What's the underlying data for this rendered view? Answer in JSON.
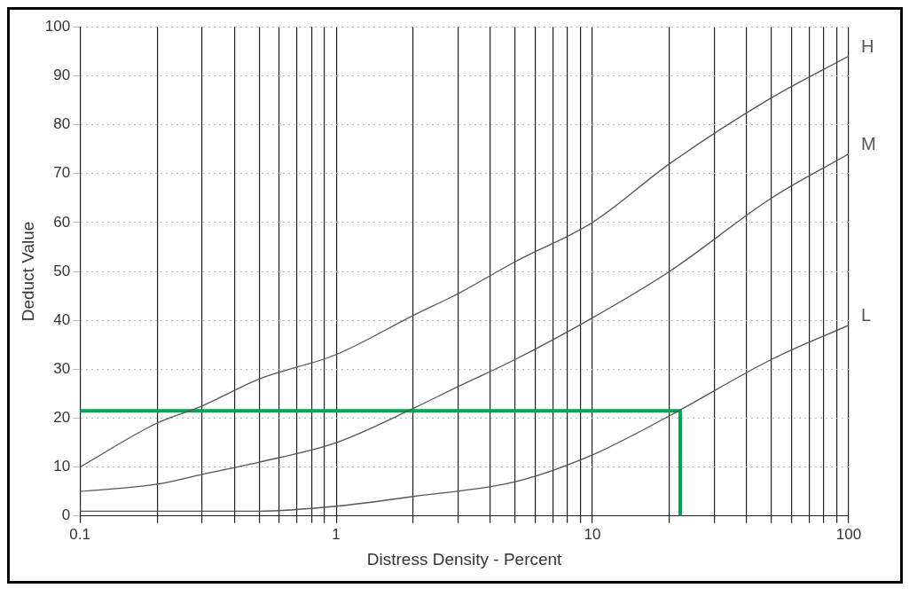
{
  "chart_data": {
    "type": "line",
    "xlabel": "Distress Density - Percent",
    "ylabel": "Deduct Value",
    "log": "x",
    "grid": true,
    "legend": false,
    "marker": "none",
    "line_style": "solid",
    "xlim": [
      0.1,
      100
    ],
    "ylim": [
      0,
      100
    ],
    "xticks": [
      0.1,
      {
        "value": 0.2,
        "label": null
      },
      {
        "value": 0.3,
        "label": null
      },
      {
        "value": 0.4,
        "label": null
      },
      {
        "value": 0.5,
        "label": null
      },
      {
        "value": 0.6,
        "label": null
      },
      {
        "value": 0.7,
        "label": null
      },
      {
        "value": 0.8,
        "label": null
      },
      {
        "value": 0.9,
        "label": null
      },
      1,
      {
        "value": 2,
        "label": null
      },
      {
        "value": 3,
        "label": null
      },
      {
        "value": 4,
        "label": null
      },
      {
        "value": 5,
        "label": null
      },
      {
        "value": 6,
        "label": null
      },
      {
        "value": 7,
        "label": null
      },
      {
        "value": 8,
        "label": null
      },
      {
        "value": 9,
        "label": null
      },
      10,
      {
        "value": 20,
        "label": null
      },
      {
        "value": 30,
        "label": null
      },
      {
        "value": 40,
        "label": null
      },
      {
        "value": 50,
        "label": null
      },
      {
        "value": 60,
        "label": null
      },
      {
        "value": 70,
        "label": null
      },
      {
        "value": 80,
        "label": null
      },
      {
        "value": 90,
        "label": null
      },
      100
    ],
    "yticks": [
      0,
      10,
      20,
      30,
      40,
      50,
      60,
      70,
      80,
      90,
      100
    ],
    "series": [
      {
        "name": "H",
        "color": "#555555",
        "x": [
          0.1,
          0.2,
          0.3,
          0.5,
          1,
          2,
          3,
          5,
          10,
          20,
          50,
          100
        ],
        "values": [
          10,
          19,
          22.5,
          28,
          33,
          41,
          45.5,
          52,
          60,
          72,
          85.5,
          94
        ]
      },
      {
        "name": "M",
        "color": "#555555",
        "x": [
          0.1,
          0.2,
          0.3,
          0.5,
          1,
          2,
          3,
          5,
          10,
          20,
          50,
          100
        ],
        "values": [
          5,
          6.5,
          8.5,
          11,
          15,
          22,
          26.5,
          32,
          40.5,
          50,
          65,
          74
        ]
      },
      {
        "name": "L",
        "color": "#555555",
        "x": [
          0.1,
          0.5,
          1,
          2,
          5,
          10,
          20,
          50,
          100
        ],
        "values": [
          1,
          1,
          2,
          4,
          7,
          12.5,
          20.5,
          32,
          39
        ]
      },
      {
        "color": "#00a650",
        "x": [
          0.1,
          22,
          22
        ],
        "values": [
          21.5,
          21.5,
          0
        ]
      }
    ]
  }
}
